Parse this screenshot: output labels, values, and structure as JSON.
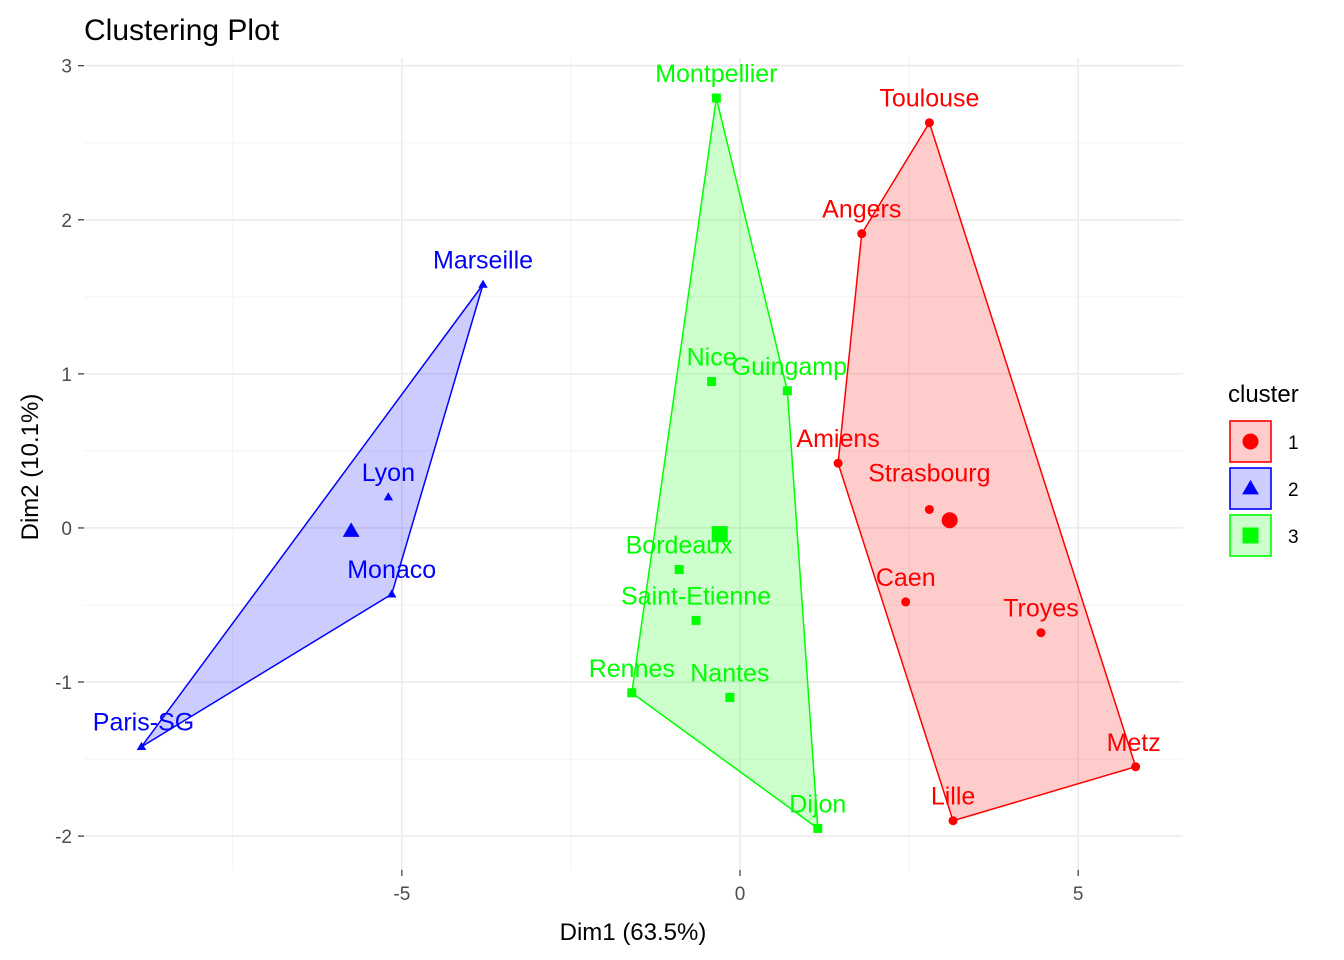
{
  "chart_data": {
    "type": "scatter",
    "title": "Clustering Plot",
    "xlabel": "Dim1 (63.5%)",
    "ylabel": "Dim2 (10.1%)",
    "xlim": [
      -9.7,
      6.55
    ],
    "ylim": [
      -2.22,
      3.05
    ],
    "x_ticks": [
      {
        "value": -5,
        "label": "-5"
      },
      {
        "value": 0,
        "label": "0"
      },
      {
        "value": 5,
        "label": "5"
      }
    ],
    "y_ticks": [
      {
        "value": -2,
        "label": "-2"
      },
      {
        "value": -1,
        "label": "-1"
      },
      {
        "value": 0,
        "label": "0"
      },
      {
        "value": 1,
        "label": "1"
      },
      {
        "value": 2,
        "label": "2"
      },
      {
        "value": 3,
        "label": "3"
      }
    ],
    "grid": true,
    "legend": {
      "title": "cluster",
      "position": "right"
    },
    "clusters": [
      {
        "name": "1",
        "color": "#ff0000",
        "fill": "#ff0000",
        "shape": "circle",
        "center": {
          "x": 3.1,
          "y": 0.05
        },
        "hull": [
          "Toulouse",
          "Metz",
          "Lille",
          "Amiens",
          "Angers"
        ],
        "points": [
          {
            "label": "Toulouse",
            "x": 2.8,
            "y": 2.63
          },
          {
            "label": "Angers",
            "x": 1.8,
            "y": 1.91
          },
          {
            "label": "Amiens",
            "x": 1.45,
            "y": 0.42
          },
          {
            "label": "Strasbourg",
            "x": 2.8,
            "y": 0.12
          },
          {
            "label": "Caen",
            "x": 2.45,
            "y": -0.48
          },
          {
            "label": "Troyes",
            "x": 4.45,
            "y": -0.68
          },
          {
            "label": "Metz",
            "x": 5.85,
            "y": -1.55
          },
          {
            "label": "Lille",
            "x": 3.15,
            "y": -1.9
          }
        ]
      },
      {
        "name": "2",
        "color": "#0000ff",
        "fill": "#0000ff",
        "shape": "triangle",
        "center": {
          "x": -5.75,
          "y": -0.02
        },
        "hull": [
          "Marseille",
          "Monaco",
          "Paris-SG"
        ],
        "points": [
          {
            "label": "Marseille",
            "x": -3.8,
            "y": 1.58
          },
          {
            "label": "Lyon",
            "x": -5.2,
            "y": 0.2
          },
          {
            "label": "Monaco",
            "x": -5.15,
            "y": -0.43
          },
          {
            "label": "Paris-SG",
            "x": -8.85,
            "y": -1.42
          }
        ]
      },
      {
        "name": "3",
        "color": "#00ff00",
        "fill": "#00ff00",
        "shape": "square",
        "center": {
          "x": -0.3,
          "y": -0.04
        },
        "hull": [
          "Montpellier",
          "Guingamp",
          "Dijon",
          "Rennes"
        ],
        "points": [
          {
            "label": "Montpellier",
            "x": -0.35,
            "y": 2.79
          },
          {
            "label": "Nice",
            "x": -0.42,
            "y": 0.95
          },
          {
            "label": "Guingamp",
            "x": 0.7,
            "y": 0.89
          },
          {
            "label": "Bordeaux",
            "x": -0.9,
            "y": -0.27
          },
          {
            "label": "Saint-Etienne",
            "x": -0.65,
            "y": -0.6
          },
          {
            "label": "Rennes",
            "x": -1.6,
            "y": -1.07
          },
          {
            "label": "Nantes",
            "x": -0.15,
            "y": -1.1
          },
          {
            "label": "Dijon",
            "x": 1.15,
            "y": -1.95
          }
        ]
      }
    ]
  }
}
